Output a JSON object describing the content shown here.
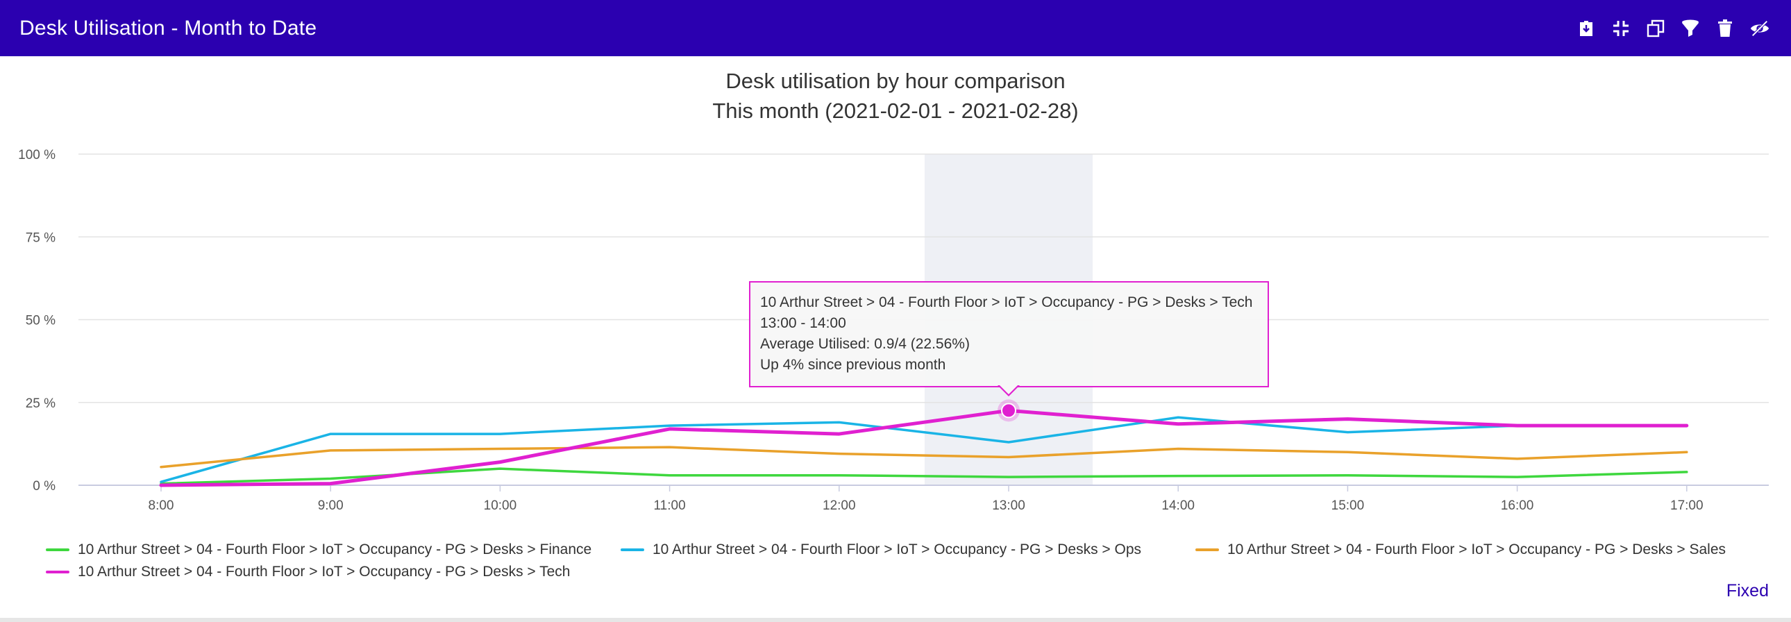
{
  "header": {
    "title": "Desk Utilisation - Month to Date",
    "bg_color": "#2b00b0",
    "tools": [
      {
        "name": "download-icon"
      },
      {
        "name": "collapse-icon"
      },
      {
        "name": "copy-icon"
      },
      {
        "name": "filter-icon"
      },
      {
        "name": "trash-icon"
      },
      {
        "name": "hide-icon"
      }
    ]
  },
  "chart_data": {
    "type": "line",
    "title": "Desk utilisation by hour comparison",
    "subtitle": "This month (2021-02-01 - 2021-02-28)",
    "xlabel": "",
    "ylabel": "",
    "categories": [
      "8:00",
      "9:00",
      "10:00",
      "11:00",
      "12:00",
      "13:00",
      "14:00",
      "15:00",
      "16:00",
      "17:00"
    ],
    "y_ticks": [
      "0 %",
      "25 %",
      "50 %",
      "75 %",
      "100 %"
    ],
    "ylim": [
      0,
      100
    ],
    "grid": true,
    "highlighted_category": "13:00",
    "legend_position": "bottom",
    "series": [
      {
        "name": "10 Arthur Street > 04 - Fourth Floor > IoT > Occupancy - PG > Desks > Finance",
        "color": "#3ed73e",
        "values": [
          0.5,
          2,
          5,
          3,
          3,
          2.5,
          2.8,
          3,
          2.5,
          4
        ]
      },
      {
        "name": "10 Arthur Street > 04 - Fourth Floor > IoT > Occupancy - PG > Desks > Ops",
        "color": "#1ab4e6",
        "values": [
          1,
          15.5,
          15.5,
          18,
          19,
          13,
          20.5,
          16,
          18,
          18
        ]
      },
      {
        "name": "10 Arthur Street > 04 - Fourth Floor > IoT > Occupancy - PG > Desks > Sales",
        "color": "#e9a12b",
        "values": [
          5.5,
          10.5,
          11,
          11.5,
          9.5,
          8.5,
          11,
          10,
          8,
          10
        ]
      },
      {
        "name": "10 Arthur Street > 04 - Fourth Floor > IoT > Occupancy - PG > Desks > Tech",
        "color": "#e020d0",
        "values": [
          0,
          0.5,
          7,
          17,
          15.5,
          22.56,
          18.5,
          20,
          18,
          18
        ]
      }
    ]
  },
  "tooltip": {
    "line1": "10 Arthur Street > 04 - Fourth Floor > IoT > Occupancy - PG > Desks > Tech",
    "line2": "13:00 - 14:00",
    "line3": "Average Utilised: 0.9/4 (22.56%)",
    "line4": "Up 4% since previous month"
  },
  "footer": {
    "fixed_label": "Fixed"
  }
}
